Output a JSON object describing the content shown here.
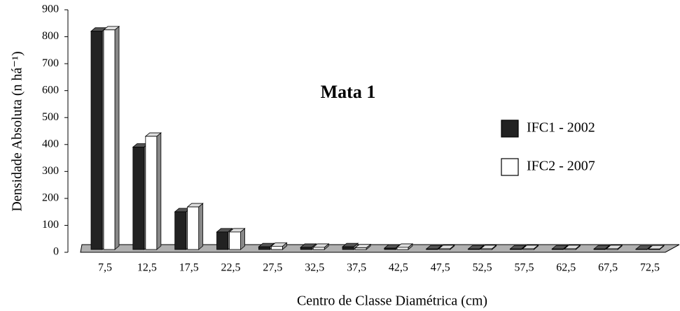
{
  "chart_data": {
    "type": "bar3d",
    "title": "Mata 1",
    "x_label": "Centro de Classe Diamétrica (cm)",
    "y_label": "Densidade Absoluta (n há⁻¹)",
    "categories": [
      "7,5",
      "12,5",
      "17,5",
      "22,5",
      "27,5",
      "32,5",
      "37,5",
      "42,5",
      "47,5",
      "52,5",
      "57,5",
      "62,5",
      "67,5",
      "72,5"
    ],
    "series": [
      {
        "name": "IFC1 - 2002",
        "color": "#222222",
        "values": [
          810,
          380,
          140,
          65,
          10,
          8,
          10,
          5,
          2,
          2,
          2,
          2,
          2,
          1
        ]
      },
      {
        "name": "IFC2 - 2007",
        "color": "#ffffff",
        "values": [
          815,
          420,
          158,
          65,
          12,
          8,
          6,
          8,
          3,
          3,
          3,
          3,
          3,
          2
        ]
      }
    ],
    "ylim": [
      0,
      900
    ],
    "yticks": [
      0,
      100,
      200,
      300,
      400,
      500,
      600,
      700,
      800,
      900
    ],
    "legend": "right"
  }
}
